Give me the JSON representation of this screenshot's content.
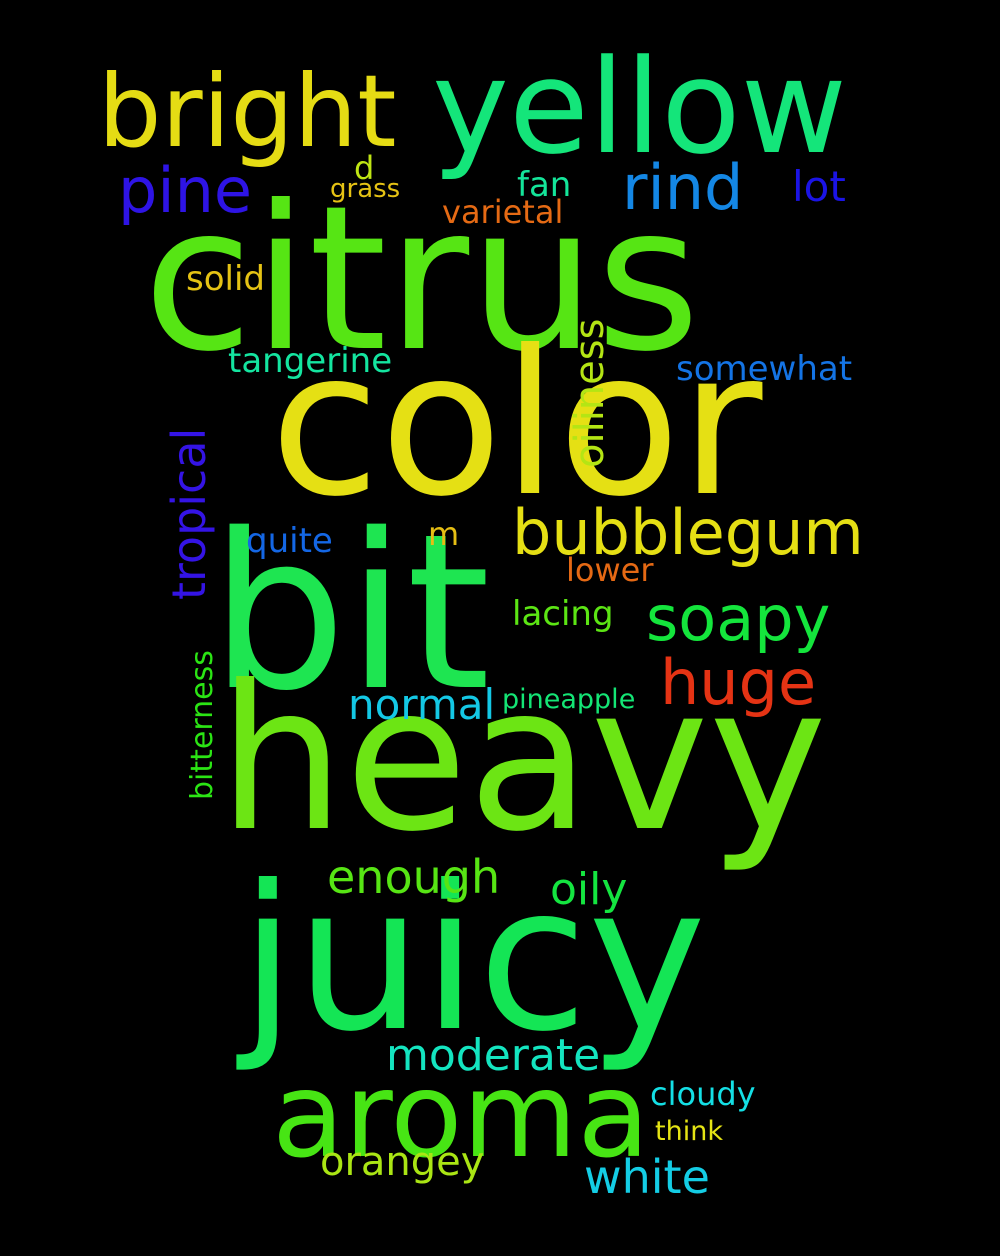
{
  "background": "#000000",
  "words": [
    {
      "id": "citrus",
      "text": "citrus",
      "color": "#56e514"
    },
    {
      "id": "color",
      "text": "color",
      "color": "#e5e014"
    },
    {
      "id": "bit",
      "text": "bit",
      "color": "#1ee551"
    },
    {
      "id": "heavy",
      "text": "heavy",
      "color": "#6ce514"
    },
    {
      "id": "juicy",
      "text": "juicy",
      "color": "#14e555"
    },
    {
      "id": "yellow",
      "text": "yellow",
      "color": "#14e57a"
    },
    {
      "id": "bright",
      "text": "bright",
      "color": "#e5dc14"
    },
    {
      "id": "aroma",
      "text": "aroma",
      "color": "#47e514"
    },
    {
      "id": "bubblegum",
      "text": "bubblegum",
      "color": "#e5df14"
    },
    {
      "id": "rind",
      "text": "rind",
      "color": "#1487e5"
    },
    {
      "id": "pine",
      "text": "pine",
      "color": "#2e14e5"
    },
    {
      "id": "soapy",
      "text": "soapy",
      "color": "#14e53c"
    },
    {
      "id": "huge",
      "text": "huge",
      "color": "#e53314"
    },
    {
      "id": "tropical",
      "text": "tropical",
      "color": "#3414e5"
    },
    {
      "id": "oiliness",
      "text": "oiliness",
      "color": "#b4e514"
    },
    {
      "id": "normal",
      "text": "normal",
      "color": "#14c8e5"
    },
    {
      "id": "enough",
      "text": "enough",
      "color": "#57e514"
    },
    {
      "id": "oily",
      "text": "oily",
      "color": "#14e540"
    },
    {
      "id": "moderate",
      "text": "moderate",
      "color": "#14e5c0"
    },
    {
      "id": "white",
      "text": "white",
      "color": "#14cde5"
    },
    {
      "id": "orangey",
      "text": "orangey",
      "color": "#aae514"
    },
    {
      "id": "lot",
      "text": "lot",
      "color": "#1b14e5"
    },
    {
      "id": "somewhat",
      "text": "somewhat",
      "color": "#1474e5"
    },
    {
      "id": "tangerine",
      "text": "tangerine",
      "color": "#14e5a0"
    },
    {
      "id": "solid",
      "text": "solid",
      "color": "#e5c314"
    },
    {
      "id": "fan",
      "text": "fan",
      "color": "#14e59a"
    },
    {
      "id": "varietal",
      "text": "varietal",
      "color": "#e56a14"
    },
    {
      "id": "grass",
      "text": "grass",
      "color": "#e5c214"
    },
    {
      "id": "d",
      "text": "d",
      "color": "#bfe514"
    },
    {
      "id": "quite",
      "text": "quite",
      "color": "#1467e5"
    },
    {
      "id": "m",
      "text": "m",
      "color": "#e5be14"
    },
    {
      "id": "lower",
      "text": "lower",
      "color": "#e56914"
    },
    {
      "id": "lacing",
      "text": "lacing",
      "color": "#5ce514"
    },
    {
      "id": "pineapple",
      "text": "pineapple",
      "color": "#14e575"
    },
    {
      "id": "bitterness",
      "text": "bitterness",
      "color": "#2be514"
    },
    {
      "id": "cloudy",
      "text": "cloudy",
      "color": "#14dfe5"
    },
    {
      "id": "think",
      "text": "think",
      "color": "#e5e414"
    }
  ]
}
